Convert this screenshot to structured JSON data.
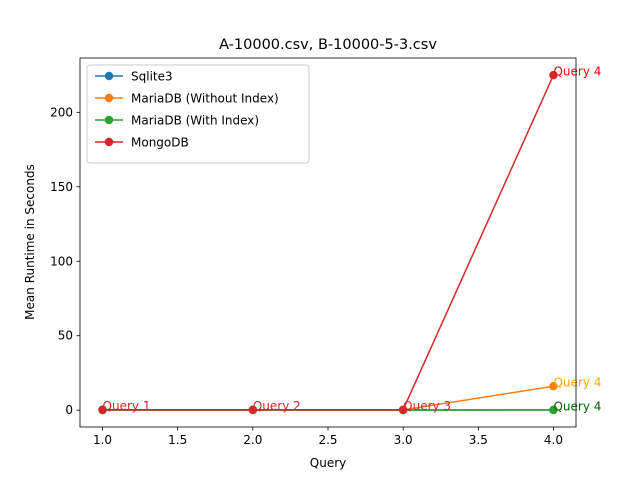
{
  "chart_data": {
    "type": "line",
    "title": "A-10000.csv, B-10000-5-3.csv",
    "xlabel": "Query",
    "ylabel": "Mean Runtime in Seconds",
    "xlim": [
      0.85,
      4.15
    ],
    "ylim": [
      -11.3,
      236.5
    ],
    "xticks": [
      "1.0",
      "1.5",
      "2.0",
      "2.5",
      "3.0",
      "3.5",
      "4.0"
    ],
    "yticks": [
      "0",
      "50",
      "100",
      "150",
      "200"
    ],
    "legend_position": "upper-left",
    "grid": false,
    "x": [
      1,
      2,
      3,
      4
    ],
    "series": [
      {
        "name": "Sqlite3",
        "color": "#1f77b4",
        "values": [
          0.05,
          0.05,
          0.05,
          0.1
        ]
      },
      {
        "name": "MariaDB (Without Index)",
        "color": "#ff7f0e",
        "values": [
          0.2,
          0.2,
          0.2,
          16.1
        ]
      },
      {
        "name": "MariaDB (With Index)",
        "color": "#2ca02c",
        "values": [
          0.1,
          0.1,
          0.1,
          0.2
        ]
      },
      {
        "name": "MongoDB",
        "color": "#d62728",
        "values": [
          0.3,
          0.3,
          0.3,
          225.0
        ]
      }
    ],
    "annotations": [
      {
        "text": "Query 1",
        "x": 1,
        "y": 0.3,
        "color": "#d62728"
      },
      {
        "text": "Query 2",
        "x": 2,
        "y": 0.3,
        "color": "#d62728"
      },
      {
        "text": "Query 3",
        "x": 3,
        "y": 0.3,
        "color": "#d62728"
      },
      {
        "text": "Query 4",
        "x": 4,
        "y": 225.0,
        "color": "#ff0000"
      },
      {
        "text": "Query 4",
        "x": 4,
        "y": 16.1,
        "color": "#ffa500"
      },
      {
        "text": "Query 4",
        "x": 4,
        "y": 0.2,
        "color": "#006400"
      }
    ]
  }
}
